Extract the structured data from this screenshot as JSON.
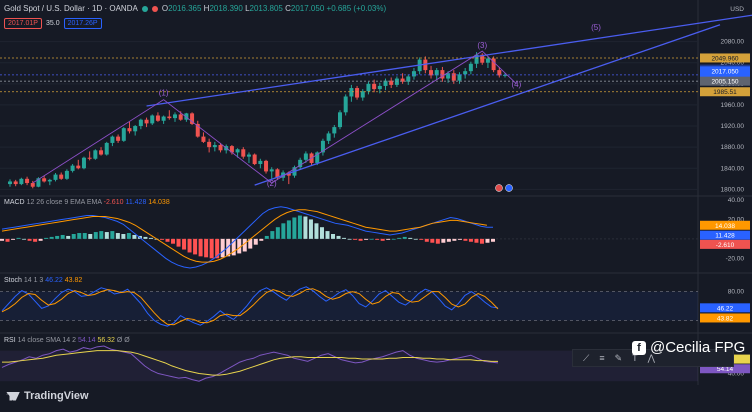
{
  "header": {
    "title": "Gold Spot / U.S. Dollar · 1D · OANDA",
    "open_label": "O",
    "open": "2016.365",
    "high_label": "H",
    "high": "2018.390",
    "low_label": "L",
    "low": "2013.805",
    "close_label": "C",
    "close": "2017.050",
    "change": "+0.685 (+0.03%)",
    "sell_chip": "2017.01P",
    "spread": "35.0",
    "buy_chip": "2017.26P"
  },
  "colors": {
    "bg": "#161a25",
    "up": "#26a69a",
    "down": "#ef5350",
    "trend": "#4a5df0",
    "wave": "#8c4fc7",
    "macd": "#2962ff",
    "signal": "#ff9800",
    "stochK": "#2962ff",
    "stochD": "#ff9800",
    "rsi": "#7e57c2",
    "rsiSma": "#e8d44d"
  },
  "price_axis": {
    "currency": "USD",
    "ticks": [
      "2080.00",
      "2040.00",
      "2000.00",
      "1960.00",
      "1920.00",
      "1880.00",
      "1840.00",
      "1800.00"
    ],
    "badges": {
      "price_level_1": "2049.960",
      "symbol": "XAUUSD",
      "last": "2017.050",
      "countdown": "18:13:49",
      "price_level_2": "2005.150",
      "price_level_3": "1985.51"
    }
  },
  "chart_data": [
    {
      "type": "candlestick",
      "title": "Gold Spot / U.S. Dollar · 1D · OANDA",
      "ylim": [
        1795,
        2102
      ],
      "y_ticks": [
        1800,
        1840,
        1880,
        1920,
        1960,
        2000,
        2040,
        2080
      ],
      "ohlc": [
        [
          1810,
          1819,
          1805,
          1815
        ],
        [
          1815,
          1818,
          1806,
          1810
        ],
        [
          1810,
          1822,
          1808,
          1820
        ],
        [
          1820,
          1824,
          1808,
          1812
        ],
        [
          1812,
          1816,
          1802,
          1805
        ],
        [
          1805,
          1823,
          1804,
          1821
        ],
        [
          1821,
          1826,
          1813,
          1815
        ],
        [
          1815,
          1820,
          1808,
          1818
        ],
        [
          1818,
          1831,
          1815,
          1828
        ],
        [
          1828,
          1832,
          1818,
          1820
        ],
        [
          1820,
          1838,
          1818,
          1835
        ],
        [
          1835,
          1848,
          1832,
          1845
        ],
        [
          1845,
          1856,
          1838,
          1840
        ],
        [
          1840,
          1862,
          1838,
          1860
        ],
        [
          1860,
          1872,
          1855,
          1858
        ],
        [
          1858,
          1876,
          1856,
          1874
        ],
        [
          1874,
          1880,
          1864,
          1866
        ],
        [
          1866,
          1890,
          1864,
          1888
        ],
        [
          1888,
          1902,
          1882,
          1900
        ],
        [
          1900,
          1904,
          1888,
          1892
        ],
        [
          1892,
          1918,
          1890,
          1916
        ],
        [
          1916,
          1928,
          1906,
          1910
        ],
        [
          1910,
          1922,
          1902,
          1920
        ],
        [
          1920,
          1934,
          1914,
          1932
        ],
        [
          1932,
          1936,
          1918,
          1925
        ],
        [
          1925,
          1942,
          1922,
          1940
        ],
        [
          1940,
          1946,
          1928,
          1930
        ],
        [
          1930,
          1940,
          1924,
          1938
        ],
        [
          1938,
          1950,
          1932,
          1935
        ],
        [
          1935,
          1946,
          1928,
          1942
        ],
        [
          1942,
          1948,
          1930,
          1932
        ],
        [
          1932,
          1945,
          1928,
          1944
        ],
        [
          1944,
          1946,
          1922,
          1924
        ],
        [
          1924,
          1930,
          1898,
          1900
        ],
        [
          1900,
          1908,
          1888,
          1890
        ],
        [
          1890,
          1896,
          1870,
          1880
        ],
        [
          1880,
          1890,
          1872,
          1884
        ],
        [
          1884,
          1888,
          1870,
          1874
        ],
        [
          1874,
          1885,
          1868,
          1882
        ],
        [
          1882,
          1884,
          1866,
          1870
        ],
        [
          1870,
          1878,
          1860,
          1876
        ],
        [
          1876,
          1880,
          1858,
          1862
        ],
        [
          1862,
          1870,
          1850,
          1866
        ],
        [
          1866,
          1868,
          1846,
          1848
        ],
        [
          1848,
          1858,
          1840,
          1854
        ],
        [
          1854,
          1856,
          1830,
          1834
        ],
        [
          1834,
          1842,
          1820,
          1838
        ],
        [
          1838,
          1840,
          1818,
          1822
        ],
        [
          1822,
          1836,
          1816,
          1832
        ],
        [
          1832,
          1834,
          1810,
          1826
        ],
        [
          1826,
          1845,
          1822,
          1842
        ],
        [
          1842,
          1860,
          1838,
          1856
        ],
        [
          1856,
          1872,
          1850,
          1868
        ],
        [
          1868,
          1870,
          1846,
          1850
        ],
        [
          1850,
          1872,
          1846,
          1870
        ],
        [
          1870,
          1896,
          1864,
          1892
        ],
        [
          1892,
          1910,
          1886,
          1906
        ],
        [
          1906,
          1922,
          1898,
          1918
        ],
        [
          1918,
          1950,
          1914,
          1946
        ],
        [
          1946,
          1980,
          1940,
          1976
        ],
        [
          1976,
          1998,
          1966,
          1992
        ],
        [
          1992,
          1996,
          1970,
          1974
        ],
        [
          1974,
          1990,
          1968,
          1986
        ],
        [
          1986,
          2004,
          1980,
          2000
        ],
        [
          2000,
          2008,
          1984,
          1990
        ],
        [
          1990,
          2002,
          1982,
          1996
        ],
        [
          1996,
          2010,
          1988,
          2006
        ],
        [
          2006,
          2012,
          1992,
          1998
        ],
        [
          1998,
          2014,
          1994,
          2010
        ],
        [
          2010,
          2020,
          2000,
          2004
        ],
        [
          2004,
          2018,
          1998,
          2014
        ],
        [
          2014,
          2030,
          2008,
          2024
        ],
        [
          2024,
          2050,
          2018,
          2046
        ],
        [
          2046,
          2052,
          2020,
          2026
        ],
        [
          2026,
          2034,
          2010,
          2016
        ],
        [
          2016,
          2030,
          2008,
          2026
        ],
        [
          2026,
          2032,
          2004,
          2010
        ],
        [
          2010,
          2024,
          2002,
          2020
        ],
        [
          2020,
          2026,
          2000,
          2006
        ],
        [
          2006,
          2022,
          2000,
          2018
        ],
        [
          2018,
          2030,
          2010,
          2024
        ],
        [
          2024,
          2042,
          2018,
          2038
        ],
        [
          2038,
          2060,
          2030,
          2055
        ],
        [
          2055,
          2058,
          2036,
          2040
        ],
        [
          2040,
          2052,
          2030,
          2048
        ],
        [
          2048,
          2052,
          2022,
          2026
        ],
        [
          2026,
          2032,
          2012,
          2016
        ],
        [
          2016,
          2020,
          2012,
          2017
        ]
      ],
      "annotations": [
        {
          "label": "(1)",
          "bar": 27,
          "price": 1978
        },
        {
          "label": "(2)",
          "bar": 46,
          "price": 1806
        },
        {
          "label": "(3)",
          "bar": 83,
          "price": 2068
        },
        {
          "label": "(4)",
          "bar": 89,
          "price": 1994
        },
        {
          "label": "(5)",
          "bar": 103,
          "price": 2102
        }
      ]
    },
    {
      "type": "histogram+line",
      "title": "MACD 12 26 close 9 EMA EMA",
      "values_shown": {
        "histogram": "-2.610",
        "macd": "11.428",
        "signal": "14.038"
      },
      "y_ticks": [
        "40.00",
        "20.00",
        "-20.00"
      ],
      "histogram": [
        -2,
        -3,
        -1,
        1,
        0,
        -2,
        -3,
        -2,
        1,
        2,
        3,
        4,
        3,
        5,
        6,
        6,
        5,
        7,
        8,
        7,
        8,
        6,
        5,
        6,
        4,
        3,
        2,
        1,
        0,
        -1,
        -3,
        -5,
        -8,
        -11,
        -14,
        -16,
        -18,
        -19,
        -20,
        -20,
        -19,
        -18,
        -17,
        -15,
        -13,
        -10,
        -6,
        -2,
        3,
        8,
        12,
        16,
        19,
        22,
        24,
        23,
        20,
        16,
        12,
        8,
        5,
        3,
        1,
        0,
        -1,
        -2,
        -1,
        0,
        -1,
        -2,
        -1,
        0,
        1,
        2,
        1,
        0,
        -1,
        -3,
        -4,
        -5,
        -4,
        -3,
        -2,
        -1,
        -2,
        -3,
        -4,
        -5,
        -4,
        -3
      ],
      "macd": [
        10,
        11,
        12,
        13,
        14,
        15,
        16,
        17,
        18,
        19,
        20,
        21,
        22,
        23,
        24,
        24,
        23,
        22,
        20,
        18,
        15,
        10,
        5,
        0,
        -5,
        -10,
        -15,
        -20,
        -24,
        -27,
        -29,
        -30,
        -29,
        -27,
        -24,
        -20,
        -15,
        -10,
        -4,
        2,
        8,
        14,
        20,
        26,
        30,
        32,
        33,
        32,
        30,
        28,
        26,
        24,
        22,
        20,
        18,
        16,
        15,
        14,
        12,
        10,
        8,
        7,
        6,
        5,
        4,
        5,
        6,
        8,
        10,
        12,
        14,
        16,
        18,
        20,
        22,
        21,
        19,
        17,
        15,
        13,
        12,
        12
      ],
      "signal": [
        8,
        9,
        10,
        11,
        12,
        13,
        14,
        15,
        16,
        17,
        18,
        19,
        20,
        21,
        22,
        23,
        23,
        23,
        22,
        21,
        19,
        17,
        14,
        10,
        6,
        2,
        -2,
        -6,
        -10,
        -14,
        -18,
        -21,
        -23,
        -24,
        -24,
        -23,
        -21,
        -18,
        -14,
        -10,
        -5,
        0,
        5,
        10,
        15,
        20,
        24,
        27,
        29,
        30,
        30,
        29,
        28,
        26,
        24,
        22,
        20,
        18,
        16,
        14,
        12,
        11,
        10,
        9,
        8,
        8,
        9,
        10,
        11,
        12,
        14,
        16,
        17,
        18,
        19,
        19,
        18,
        17,
        16,
        15,
        14
      ]
    },
    {
      "type": "line",
      "title": "Stoch 14 1 3",
      "values_shown": {
        "k": "46.22",
        "d": "43.82"
      },
      "y_ticks": [
        "80.00"
      ],
      "bands": [
        80,
        20
      ],
      "k": [
        40,
        55,
        70,
        82,
        75,
        60,
        45,
        50,
        65,
        78,
        85,
        80,
        70,
        72,
        80,
        88,
        84,
        75,
        78,
        85,
        70,
        55,
        35,
        20,
        12,
        8,
        15,
        30,
        22,
        15,
        10,
        18,
        28,
        40,
        30,
        22,
        35,
        50,
        68,
        82,
        88,
        80,
        70,
        62,
        75,
        85,
        90,
        82,
        70,
        60,
        68,
        78,
        84,
        72,
        55,
        48,
        60,
        75,
        82,
        70,
        58,
        52,
        62,
        76,
        85,
        80,
        66,
        50,
        42,
        55,
        72,
        80,
        70,
        58,
        48,
        46
      ],
      "d": [
        38,
        45,
        55,
        68,
        76,
        74,
        62,
        52,
        55,
        64,
        76,
        82,
        78,
        72,
        74,
        80,
        84,
        82,
        78,
        80,
        78,
        68,
        52,
        36,
        22,
        12,
        11,
        18,
        24,
        22,
        16,
        15,
        20,
        30,
        33,
        30,
        30,
        40,
        52,
        66,
        78,
        84,
        80,
        72,
        70,
        76,
        84,
        86,
        80,
        70,
        64,
        68,
        76,
        80,
        76,
        64,
        54,
        58,
        70,
        78,
        76,
        64,
        58,
        60,
        70,
        80,
        80,
        68,
        54,
        48,
        54,
        68,
        76,
        70,
        58,
        44
      ]
    },
    {
      "type": "line",
      "title": "RSI 14 close SMA 14 2",
      "values_shown": {
        "rsi": "54.14",
        "sma": "56.32"
      },
      "y_ticks": [
        "40.00"
      ],
      "rsi": [
        48,
        52,
        55,
        58,
        62,
        60,
        64,
        66,
        70,
        72,
        68,
        70,
        74,
        72,
        75,
        76,
        72,
        70,
        68,
        66,
        58,
        50,
        44,
        40,
        38,
        36,
        34,
        35,
        32,
        30,
        34,
        36,
        40,
        45,
        50,
        55,
        58,
        60,
        64,
        66,
        68,
        66,
        64,
        60,
        58,
        56,
        60,
        64,
        66,
        62,
        58,
        56,
        54,
        55,
        58,
        60,
        62,
        65,
        68,
        70,
        64,
        60,
        58,
        56,
        55,
        56,
        58,
        60,
        62,
        64,
        60,
        56,
        55,
        54
      ],
      "sma": [
        55,
        55,
        56,
        57,
        58,
        59,
        60,
        62,
        64,
        65,
        66,
        67,
        68,
        69,
        70,
        70,
        70,
        70,
        69,
        68,
        66,
        63,
        60,
        57,
        54,
        50,
        47,
        44,
        42,
        40,
        39,
        38,
        38,
        39,
        41,
        43,
        46,
        49,
        52,
        55,
        58,
        60,
        61,
        62,
        62,
        61,
        61,
        61,
        61,
        61,
        61,
        60,
        60,
        59,
        59,
        59,
        59,
        60,
        60,
        61,
        61,
        61,
        60,
        60,
        59,
        59,
        58,
        58,
        58,
        58,
        57,
        57,
        56,
        56
      ]
    }
  ],
  "macd_header": {
    "name": "MACD",
    "params": "12 26 close 9 EMA EMA",
    "hist": "-2.610",
    "macd": "11.428",
    "signal": "14.038"
  },
  "stoch_header": {
    "name": "Stoch",
    "params": "14 1 3",
    "k": "46.22",
    "d": "43.82"
  },
  "rsi_header": {
    "name": "RSI",
    "params": "14 close SMA 14 2",
    "rsi": "54.14",
    "sma": "56.32",
    "extra": "Ø Ø"
  },
  "macd_axis": [
    "40.00",
    "20.00",
    "-20.00"
  ],
  "stoch_axis": [
    "80.00"
  ],
  "rsi_axis": [
    "40.00"
  ],
  "footer": {
    "brand": "TradingView",
    "watermark": "@Cecilia FPG"
  }
}
